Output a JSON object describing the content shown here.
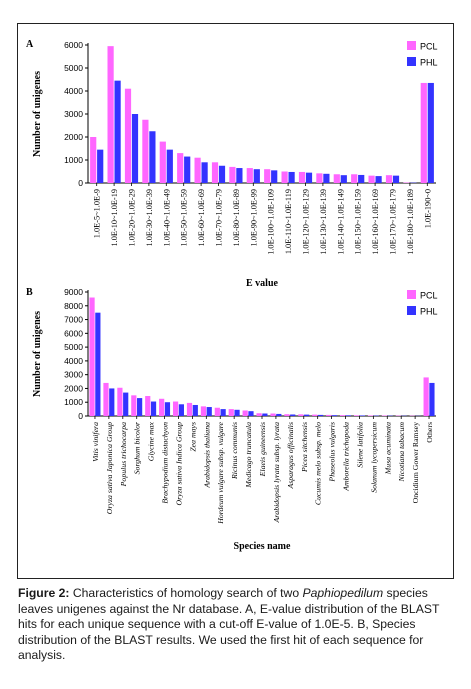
{
  "caption": {
    "label": "Figure 2:",
    "text_1": " Characteristics of homology search of two ",
    "italic": "Paphiopedilum",
    "text_2": " species leaves unigenes against the Nr database. A, E-value distribution of the BLAST hits for each unique sequence with a cut-off E-value of 1.0E-5. B, Species distribution of the BLAST results. We used the first hit of each sequence for analysis."
  },
  "colors": {
    "PCL": "#ff66ff",
    "PHL": "#3333ff"
  },
  "chart_data": [
    {
      "panel": "A",
      "type": "bar",
      "xlabel": "E value",
      "ylabel": "Number of unigenes",
      "ylim": [
        0,
        6000
      ],
      "yticks": [
        0,
        1000,
        2000,
        3000,
        4000,
        5000,
        6000
      ],
      "grid": false,
      "legend_position": "top-right",
      "categories": [
        "1.0E-5~1.0E-9",
        "1.0E-10~1.0E-19",
        "1.0E-20~1.0E-29",
        "1.0E-30~1.0E-39",
        "1.0E-40~1.0E-49",
        "1.0E-50~1.0E-59",
        "1.0E-60~1.0E-69",
        "1.0E-70~1.0E-79",
        "1.0E-80~1.0E-89",
        "1.0E-90~1.0E-99",
        "1.0E-100~1.0E-109",
        "1.0E-110~1.0E-119",
        "1.0E-120~1.0E-129",
        "1.0E-130~1.0E-139",
        "1.0E-140~1.0E-149",
        "1.0E-150~1.0E-159",
        "1.0E-160~1.0E-169",
        "1.0E-170~1.0E-179",
        "1.0E-180~1.0E-189",
        "1.0E-190~0"
      ],
      "series": [
        {
          "name": "PCL",
          "values": [
            2000,
            5950,
            4100,
            2750,
            1800,
            1300,
            1100,
            900,
            700,
            650,
            600,
            500,
            480,
            420,
            380,
            380,
            320,
            340,
            20,
            4350
          ]
        },
        {
          "name": "PHL",
          "values": [
            1450,
            4450,
            3000,
            2250,
            1450,
            1150,
            900,
            750,
            650,
            600,
            550,
            480,
            450,
            400,
            340,
            350,
            300,
            320,
            15,
            4350
          ]
        }
      ]
    },
    {
      "panel": "B",
      "type": "bar",
      "xlabel": "Species name",
      "ylabel": "Number of unigenes",
      "ylim": [
        0,
        9000
      ],
      "yticks": [
        0,
        1000,
        2000,
        3000,
        4000,
        5000,
        6000,
        7000,
        8000,
        9000
      ],
      "grid": false,
      "legend_position": "top-right",
      "categories": [
        "Vitis vinifera",
        "Oryza sativa Japonica Group",
        "Populus trichocarpa",
        "Sorghum bicolor",
        "Glycine max",
        "Brachypodium distachyon",
        "Oryza sativa Indica Group",
        "Zea mays",
        "Arabidopsis thaliana",
        "Hordeum vulgare subsp. vulgare",
        "Ricinus communis",
        "Medicago truncatula",
        "Elaeis guineensis",
        "Arabidopsis lyrata subsp. lyrata",
        "Asparagus officinalis",
        "Picea sitchensis",
        "Cucumis melo subsp. melo",
        "Phaseolus vulgaris",
        "Amborella trichopoda",
        "Silene latifolia",
        "Solanum lycopersicum",
        "Musa acuminata",
        "Nicotiana tabacum",
        "Oncidium Gower Ramsey",
        "Others"
      ],
      "series": [
        {
          "name": "PCL",
          "values": [
            8600,
            2400,
            2050,
            1500,
            1450,
            1250,
            1050,
            950,
            700,
            600,
            500,
            400,
            200,
            180,
            130,
            120,
            100,
            80,
            60,
            50,
            40,
            35,
            30,
            25,
            2800
          ]
        },
        {
          "name": "PHL",
          "values": [
            7500,
            2000,
            1700,
            1300,
            1050,
            1000,
            850,
            800,
            650,
            500,
            450,
            350,
            180,
            150,
            110,
            100,
            80,
            60,
            50,
            40,
            30,
            25,
            20,
            15,
            2400
          ]
        }
      ]
    }
  ]
}
